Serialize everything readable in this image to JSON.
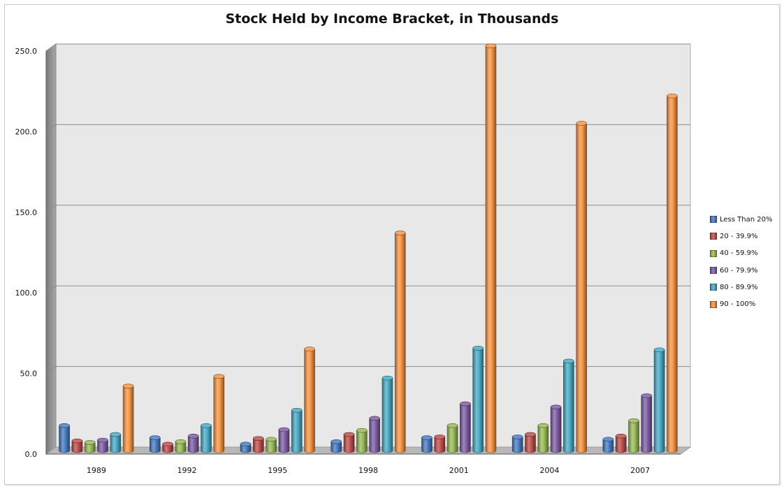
{
  "chart_data": {
    "type": "bar",
    "title": "Stock Held by Income Bracket, in Thousands",
    "xlabel": "",
    "ylabel": "",
    "categories": [
      "1989",
      "1992",
      "1995",
      "1998",
      "2001",
      "2004",
      "2007"
    ],
    "yticks": [
      "0.0",
      "50.0",
      "100.0",
      "150.0",
      "200.0",
      "250.0"
    ],
    "ylim": [
      0,
      250
    ],
    "grid": true,
    "legend_position": "right",
    "series": [
      {
        "name": "Less Than 20%",
        "color": "#4a7dc4",
        "values": [
          15.5,
          8.0,
          4.0,
          5.5,
          8.0,
          8.5,
          7.0
        ]
      },
      {
        "name": "20 - 39.9%",
        "color": "#c0504d",
        "values": [
          6.0,
          4.0,
          7.5,
          10.0,
          8.5,
          10.0,
          9.0
        ]
      },
      {
        "name": "40 - 59.9%",
        "color": "#9bbb59",
        "values": [
          5.0,
          5.5,
          7.0,
          12.5,
          15.5,
          15.5,
          18.5
        ]
      },
      {
        "name": "60 - 79.9%",
        "color": "#7f5fa6",
        "values": [
          6.5,
          9.0,
          13.0,
          20.0,
          29.0,
          27.0,
          34.0
        ]
      },
      {
        "name": "80 - 89.9%",
        "color": "#4bacc6",
        "values": [
          10.0,
          15.5,
          25.0,
          45.0,
          63.5,
          55.5,
          62.5
        ]
      },
      {
        "name": "90 - 100%",
        "color": "#f79646",
        "values": [
          40.0,
          46.0,
          63.0,
          135.0,
          251.0,
          203.0,
          220.0
        ]
      }
    ]
  }
}
